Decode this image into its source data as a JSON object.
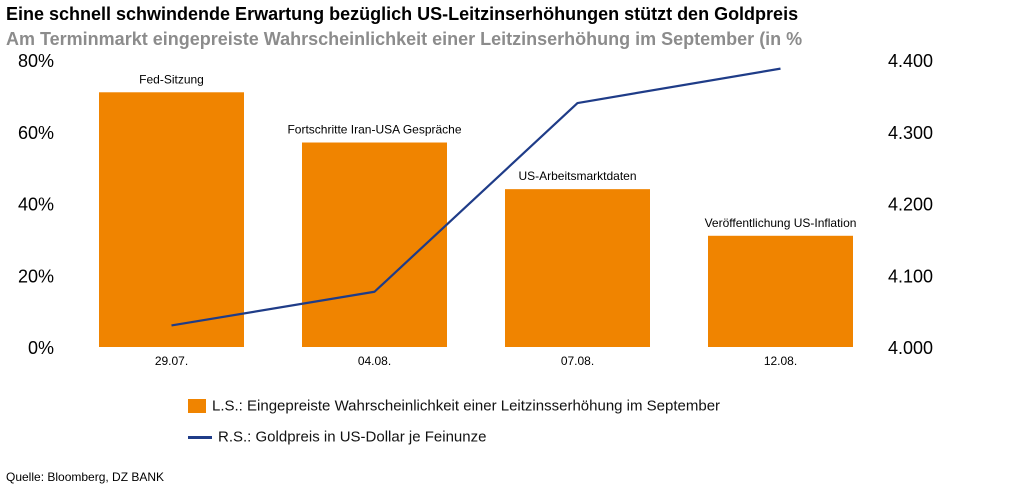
{
  "title": "Eine schnell schwindende Erwartung bezüglich US-Leitzinserhöhungen stützt den Goldpreis",
  "subtitle": "Am Terminmarkt eingepreiste Wahrscheinlichkeit einer Leitzinserhöhung im September (in %",
  "source": "Quelle: Bloomberg, DZ BANK",
  "colors": {
    "bar": "#F08400",
    "line": "#1F3C88"
  },
  "chart_data": {
    "type": "bar",
    "categories": [
      "29.07.",
      "04.08.",
      "07.08.",
      "12.08."
    ],
    "series": [
      {
        "name": "L.S.: Eingepreiste Wahrscheinlichkeit einer Leitzinsserhöhung im September",
        "type": "bar",
        "axis": "left",
        "values": [
          71,
          57,
          44,
          31
        ]
      },
      {
        "name": "R.S.: Goldpreis in US-Dollar je Feinunze",
        "type": "line",
        "axis": "right",
        "values": [
          4030,
          4077,
          4340,
          4388
        ]
      }
    ],
    "annotations": [
      "Fed-Sitzung",
      "Fortschritte Iran-USA Gespräche",
      "US-Arbeitsmarktdaten",
      "Veröffentlichung US-Inflation"
    ],
    "left_axis": {
      "ticks": [
        "0%",
        "20%",
        "40%",
        "60%",
        "80%"
      ],
      "range": [
        0,
        80
      ]
    },
    "right_axis": {
      "ticks": [
        "4.000",
        "4.100",
        "4.200",
        "4.300",
        "4.400"
      ],
      "range": [
        4000,
        4400
      ]
    },
    "grid": false,
    "legend_position": "bottom"
  }
}
